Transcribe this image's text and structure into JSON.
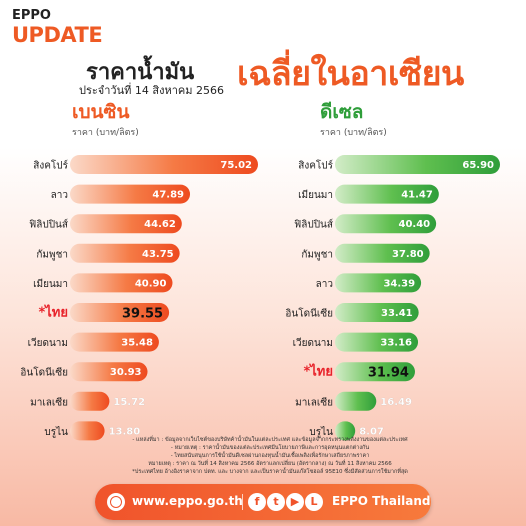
{
  "brand": {
    "line1": "EPPO",
    "line2": "UPDATE"
  },
  "title": {
    "part1": "ราคาน้ำมัน",
    "part2": "เฉลี่ยในอาเซียน",
    "date": "ประจำวันที่ 14 สิงหาคม 2566"
  },
  "colors": {
    "gasoline": "#f26a33",
    "diesel": "#3aa83a",
    "accent": "#ee5a24",
    "highlight": "#e8222a"
  },
  "chart_data": [
    {
      "type": "bar",
      "title": "เบนซิน",
      "ylabel": "ราคา (บาท/ลิตร)",
      "categories": [
        "สิงคโปร์",
        "ลาว",
        "ฟิลิปปินส์",
        "กัมพูชา",
        "เมียนมา",
        "*ไทย",
        "เวียดนาม",
        "อินโดนีเซีย",
        "มาเลเซีย",
        "บรูไน"
      ],
      "values": [
        75.02,
        47.89,
        44.62,
        43.75,
        40.9,
        39.55,
        35.48,
        30.93,
        15.72,
        13.8
      ],
      "labels": [
        "75.02",
        "47.89",
        "44.62",
        "43.75",
        "40.90",
        "39.55",
        "35.48",
        "30.93",
        "15.72",
        "13.80"
      ],
      "highlight": "*ไทย",
      "xlim": [
        0,
        75.02
      ]
    },
    {
      "type": "bar",
      "title": "ดีเซล",
      "ylabel": "ราคา (บาท/ลิตร)",
      "categories": [
        "สิงคโปร์",
        "เมียนมา",
        "ฟิลิปปินส์",
        "กัมพูชา",
        "ลาว",
        "อินโดนีเซีย",
        "เวียดนาม",
        "*ไทย",
        "มาเลเซีย",
        "บรูไน"
      ],
      "values": [
        65.9,
        41.47,
        40.4,
        37.8,
        34.39,
        33.41,
        33.16,
        31.94,
        16.49,
        8.07
      ],
      "labels": [
        "65.90",
        "41.47",
        "40.40",
        "37.80",
        "34.39",
        "33.41",
        "33.16",
        "31.94",
        "16.49",
        "8.07"
      ],
      "highlight": "*ไทย",
      "xlim": [
        0,
        65.9
      ]
    }
  ],
  "notes": [
    "- แหล่งที่มา : ข้อมูลจากเว็บไซต์ของบริษัทค้าน้ำมันในแต่ละประเทศ และข้อมูลจากกระทรวงพลังงานของแต่ละประเทศ",
    "- หมายเหตุ : ราคาน้ำมันของแต่ละประเทศมีนโยบายภาษีและการอุดหนุนแตกต่างกัน",
    "- ไทยสนับสนุนการใช้น้ำมันดีเซลผ่านกองทุนน้ำมันเชื้อเพลิงเพื่อรักษาเสถียรภาพราคา",
    "หมายเหตุ : ราคา ณ วันที่ 14 สิงหาคม 2566 อัตราแลกเปลี่ยน (อัตรากลาง) ณ วันที่ 11 สิงหาคม 2566",
    "*ประเทศไทย อ้างอิงราคาจาก ปตท. และ บางจาก และเป็นราคาน้ำมันแก๊สโซฮอล์ 95E10 ซึ่งมีสัดส่วนการใช้มากที่สุด"
  ],
  "footer": {
    "url": "www.eppo.go.th",
    "social_name": "EPPO Thailand",
    "icons": [
      "facebook-icon",
      "twitter-icon",
      "youtube-icon",
      "line-icon"
    ]
  }
}
